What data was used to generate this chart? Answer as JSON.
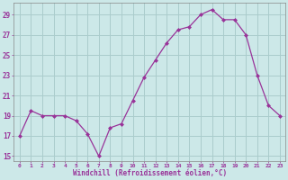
{
  "x": [
    0,
    1,
    2,
    3,
    4,
    5,
    6,
    7,
    8,
    9,
    10,
    11,
    12,
    13,
    14,
    15,
    16,
    17,
    18,
    19,
    20,
    21,
    22,
    23
  ],
  "y": [
    17.0,
    19.5,
    19.0,
    19.0,
    19.0,
    18.5,
    17.2,
    15.0,
    17.8,
    18.2,
    20.5,
    22.8,
    24.5,
    26.2,
    27.5,
    27.8,
    29.0,
    29.5,
    28.5,
    28.5,
    27.0,
    23.0,
    20.0,
    19.0
  ],
  "line_color": "#993399",
  "marker": "D",
  "marker_size": 2.0,
  "bg_color": "#cce8e8",
  "grid_color": "#aacccc",
  "xlabel": "Windchill (Refroidissement éolien,°C)",
  "ylabel_ticks": [
    15,
    17,
    19,
    21,
    23,
    25,
    27,
    29
  ],
  "xlim": [
    -0.5,
    23.5
  ],
  "ylim": [
    14.5,
    30.2
  ],
  "tick_color": "#993399",
  "label_color": "#993399",
  "font_name": "monospace"
}
